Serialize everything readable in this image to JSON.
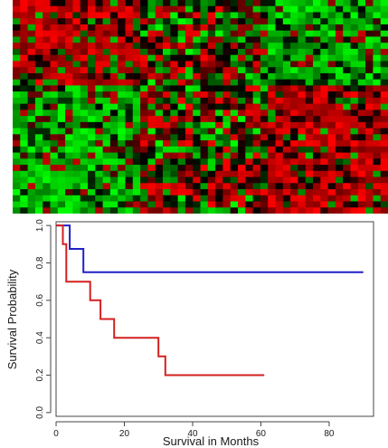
{
  "chart_data": [
    {
      "type": "heatmap",
      "rows": 35,
      "cols": 50,
      "colorscale": {
        "high": "#ff0000",
        "zero": "#000000",
        "low": "#00ff00"
      },
      "blocks": [
        {
          "rows": [
            0,
            14
          ],
          "cols": [
            0,
            17
          ],
          "tendency": "red"
        },
        {
          "rows": [
            0,
            14
          ],
          "cols": [
            17,
            34
          ],
          "tendency": "mixed"
        },
        {
          "rows": [
            0,
            14
          ],
          "cols": [
            34,
            50
          ],
          "tendency": "green"
        },
        {
          "rows": [
            14,
            35
          ],
          "cols": [
            0,
            17
          ],
          "tendency": "green"
        },
        {
          "rows": [
            14,
            35
          ],
          "cols": [
            17,
            34
          ],
          "tendency": "mixed-red"
        },
        {
          "rows": [
            14,
            35
          ],
          "cols": [
            34,
            50
          ],
          "tendency": "red"
        }
      ]
    },
    {
      "type": "line",
      "step": true,
      "xlabel": "Survival in Months",
      "ylabel": "Survival Probability",
      "xlim": [
        0,
        93
      ],
      "ylim": [
        -0.02,
        1.02
      ],
      "xticks": [
        0,
        20,
        40,
        60,
        80
      ],
      "yticks": [
        0.0,
        0.2,
        0.4,
        0.6,
        0.8,
        1.0
      ],
      "ytick_labels": [
        "0.0",
        "0.2",
        "0.4",
        "0.6",
        "0.8",
        "1.0"
      ],
      "series": [
        {
          "color": "#2020c8",
          "x": [
            0,
            4,
            8,
            90
          ],
          "y": [
            1.0,
            0.875,
            0.75,
            0.75
          ]
        },
        {
          "color": "#d42020",
          "x": [
            0,
            2,
            3,
            10,
            13,
            17,
            30,
            32,
            61
          ],
          "y": [
            1.0,
            0.9,
            0.7,
            0.6,
            0.5,
            0.4,
            0.3,
            0.2,
            0.2
          ]
        }
      ]
    }
  ]
}
